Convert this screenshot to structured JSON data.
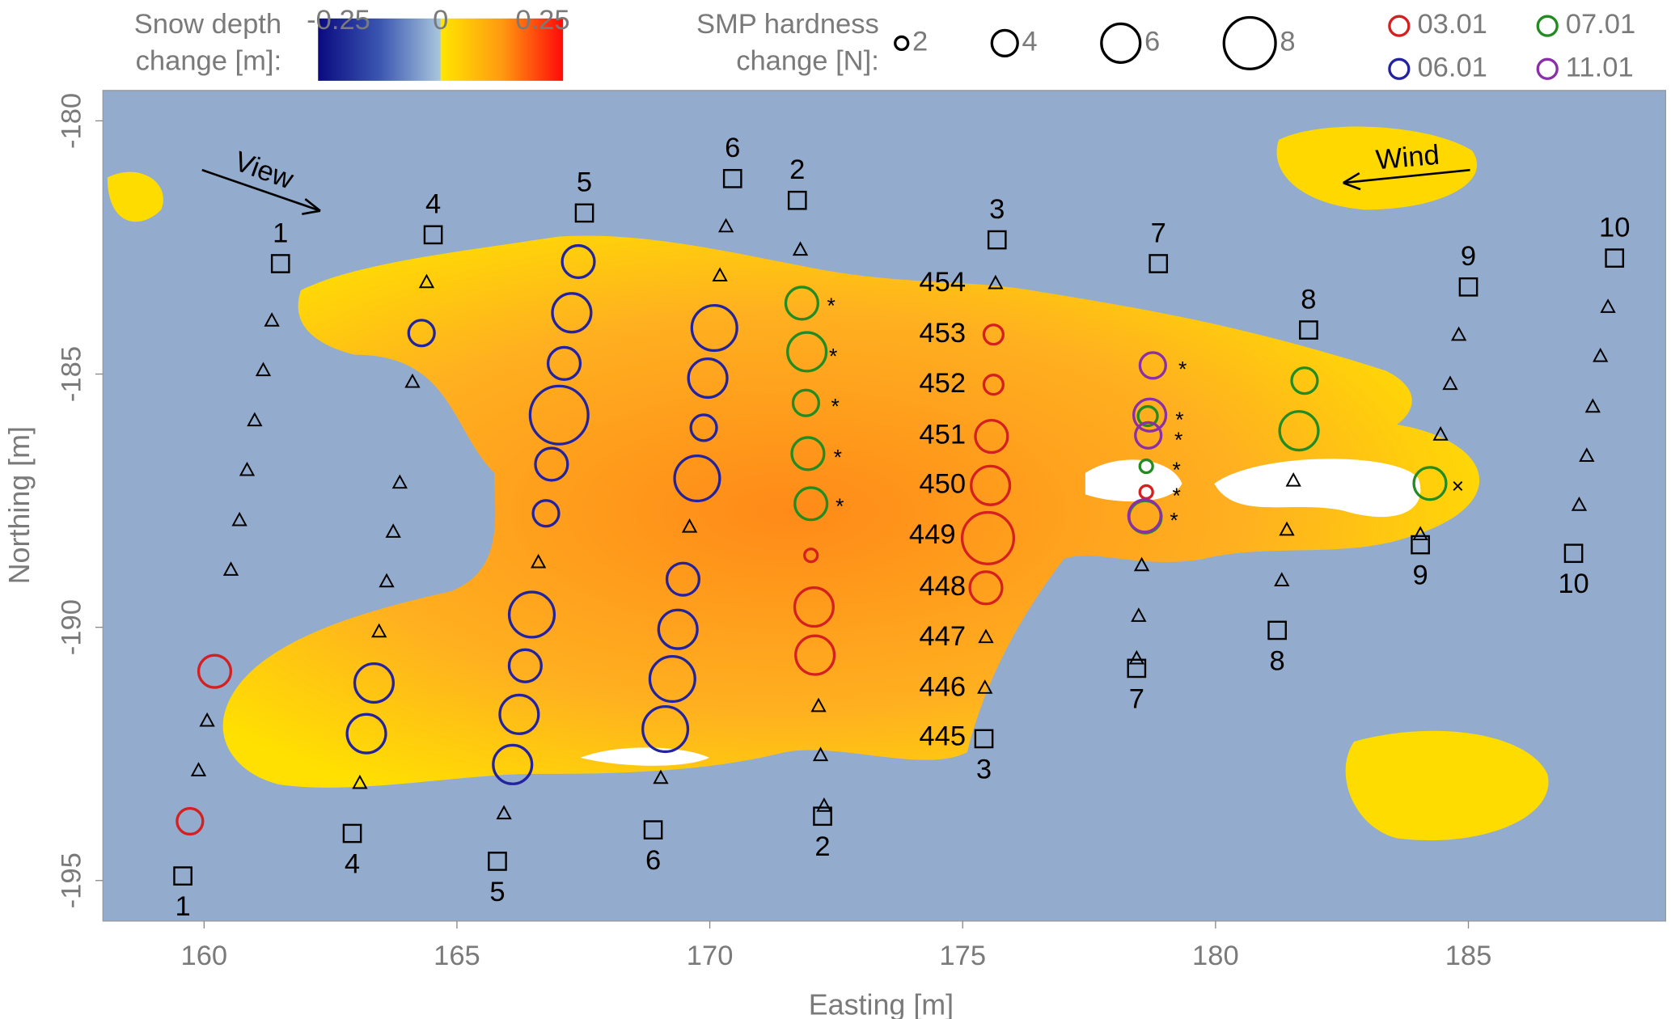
{
  "chart_data": {
    "type": "scatter",
    "x_label": "Easting [m]",
    "y_label": "Northing [m]",
    "xlim": [
      158.0,
      188.9
    ],
    "ylim": [
      -195.8,
      -179.4
    ],
    "xticks": [
      160,
      165,
      170,
      175,
      180,
      185
    ],
    "yticks": [
      -180,
      -185,
      -190,
      -195
    ],
    "colorbar": {
      "title": [
        "Snow depth",
        "change [m]:"
      ],
      "lim": [
        -0.3,
        0.3
      ],
      "ticks": [
        -0.25,
        0,
        0.25
      ]
    },
    "size_legend": {
      "title": [
        "SMP hardness",
        "change [N]:"
      ],
      "sizes": [
        2,
        4,
        6,
        8
      ]
    },
    "series": [
      {
        "name": "03.01",
        "color": "#d42020",
        "x": [
          160.21,
          159.72,
          172.0,
          172.06,
          172.08,
          175.61,
          175.61,
          175.57,
          175.55,
          175.5,
          175.46,
          178.63
        ],
        "y": [
          -190.87,
          -193.83,
          -188.58,
          -189.6,
          -190.55,
          -184.22,
          -185.21,
          -186.23,
          -187.2,
          -188.24,
          -189.22,
          -187.33
        ],
        "sizes": [
          5,
          4,
          2,
          6,
          6,
          3,
          3,
          5,
          6,
          8,
          5,
          2
        ]
      },
      {
        "name": "06.01",
        "color": "#2323a0",
        "x": [
          164.3,
          167.4,
          167.27,
          167.12,
          167.02,
          166.87,
          166.76,
          166.48,
          166.35,
          166.23,
          166.1,
          163.36,
          163.21,
          170.09,
          169.96,
          169.88,
          169.75,
          169.47,
          169.37,
          169.26,
          169.12
        ],
        "y": [
          -184.19,
          -182.78,
          -183.79,
          -184.79,
          -185.81,
          -186.78,
          -187.75,
          -189.75,
          -190.76,
          -191.72,
          -192.71,
          -191.1,
          -192.1,
          -184.09,
          -185.08,
          -186.06,
          -187.06,
          -189.05,
          -190.04,
          -191.02,
          -192.01
        ],
        "sizes": [
          4,
          5,
          6,
          5,
          9,
          5,
          4,
          7,
          5,
          6,
          6,
          6,
          6,
          7,
          6,
          4,
          7,
          5,
          6,
          7,
          7
        ]
      },
      {
        "name": "07.01",
        "color": "#228b22",
        "x": [
          171.82,
          171.92,
          171.9,
          171.94,
          172.0,
          181.76,
          181.65,
          184.24,
          178.66,
          178.63,
          178.61
        ],
        "y": [
          -183.6,
          -184.56,
          -185.57,
          -186.57,
          -187.56,
          -185.13,
          -186.12,
          -187.16,
          -185.83,
          -186.82,
          -187.82
        ],
        "sizes": [
          5,
          6,
          4,
          5,
          5,
          4,
          6,
          5,
          3,
          2,
          5
        ]
      },
      {
        "name": "11.01",
        "color": "#8b2fa8",
        "x": [
          178.76,
          178.7,
          178.67,
          178.6
        ],
        "y": [
          -184.83,
          -185.81,
          -186.21,
          -187.8
        ],
        "sizes": [
          4,
          5,
          4,
          5
        ]
      }
    ],
    "triangles": {
      "x": [
        161.34,
        161.17,
        161.0,
        160.85,
        160.7,
        160.53,
        160.06,
        159.89,
        164.4,
        164.12,
        163.87,
        163.74,
        163.61,
        163.46,
        163.08,
        166.61,
        165.93,
        170.32,
        170.2,
        169.6,
        169.03,
        171.79,
        172.15,
        172.19,
        172.26,
        175.65,
        175.46,
        175.44,
        178.54,
        178.48,
        178.44,
        181.54,
        181.41,
        181.31,
        184.81,
        184.64,
        184.45,
        184.05,
        187.76,
        187.61,
        187.46,
        187.34,
        187.19
      ],
      "y": [
        -183.94,
        -184.92,
        -185.91,
        -186.89,
        -187.88,
        -188.86,
        -191.84,
        -192.82,
        -183.18,
        -185.15,
        -187.14,
        -188.11,
        -189.09,
        -190.08,
        -193.07,
        -188.71,
        -193.67,
        -182.08,
        -183.05,
        -188.01,
        -192.97,
        -182.54,
        -191.55,
        -192.52,
        -193.52,
        -183.2,
        -190.19,
        -191.19,
        -188.77,
        -189.77,
        -190.61,
        -187.1,
        -188.07,
        -189.07,
        -184.22,
        -185.19,
        -186.19,
        -188.16,
        -183.67,
        -184.64,
        -185.64,
        -186.61,
        -187.58
      ]
    },
    "transect_ends": {
      "labels": [
        "1",
        "1",
        "4",
        "4",
        "5",
        "5",
        "6",
        "6",
        "2",
        "2",
        "3",
        "3",
        "7",
        "7",
        "8",
        "8",
        "9",
        "9",
        "10",
        "10"
      ],
      "x": [
        161.51,
        159.58,
        164.53,
        162.93,
        167.52,
        165.8,
        170.45,
        168.88,
        171.73,
        172.23,
        175.68,
        175.42,
        178.87,
        178.44,
        181.84,
        181.22,
        185.0,
        184.05,
        187.89,
        187.08
      ],
      "y": [
        -182.82,
        -194.91,
        -182.25,
        -194.07,
        -181.82,
        -194.62,
        -181.14,
        -194.0,
        -181.57,
        -193.73,
        -182.35,
        -192.2,
        -182.82,
        -190.81,
        -184.13,
        -190.06,
        -183.28,
        -188.37,
        -182.71,
        -188.54
      ]
    },
    "site_labels": {
      "labels": [
        "454",
        "453",
        "452",
        "451",
        "450",
        "449",
        "448",
        "447",
        "446",
        "445"
      ],
      "x": [
        174.6,
        174.6,
        174.6,
        174.6,
        174.6,
        174.4,
        174.6,
        174.6,
        174.6,
        174.6
      ],
      "y": [
        -183.22,
        -184.22,
        -185.21,
        -186.23,
        -187.2,
        -188.2,
        -189.22,
        -190.21,
        -191.21,
        -192.18
      ]
    },
    "flags": [
      {
        "symbol": "*",
        "x": [
          172.4,
          172.44,
          172.48,
          172.53,
          172.57,
          179.35,
          179.29,
          179.27,
          179.23,
          179.23,
          179.18
        ],
        "y": [
          -183.62,
          -184.62,
          -185.61,
          -186.61,
          -187.58,
          -184.87,
          -185.87,
          -186.27,
          -186.86,
          -187.37,
          -187.86
        ]
      },
      {
        "symbol": "×",
        "x": [
          184.79
        ],
        "y": [
          -187.18
        ]
      }
    ],
    "annotations": [
      "View",
      "Wind"
    ]
  }
}
